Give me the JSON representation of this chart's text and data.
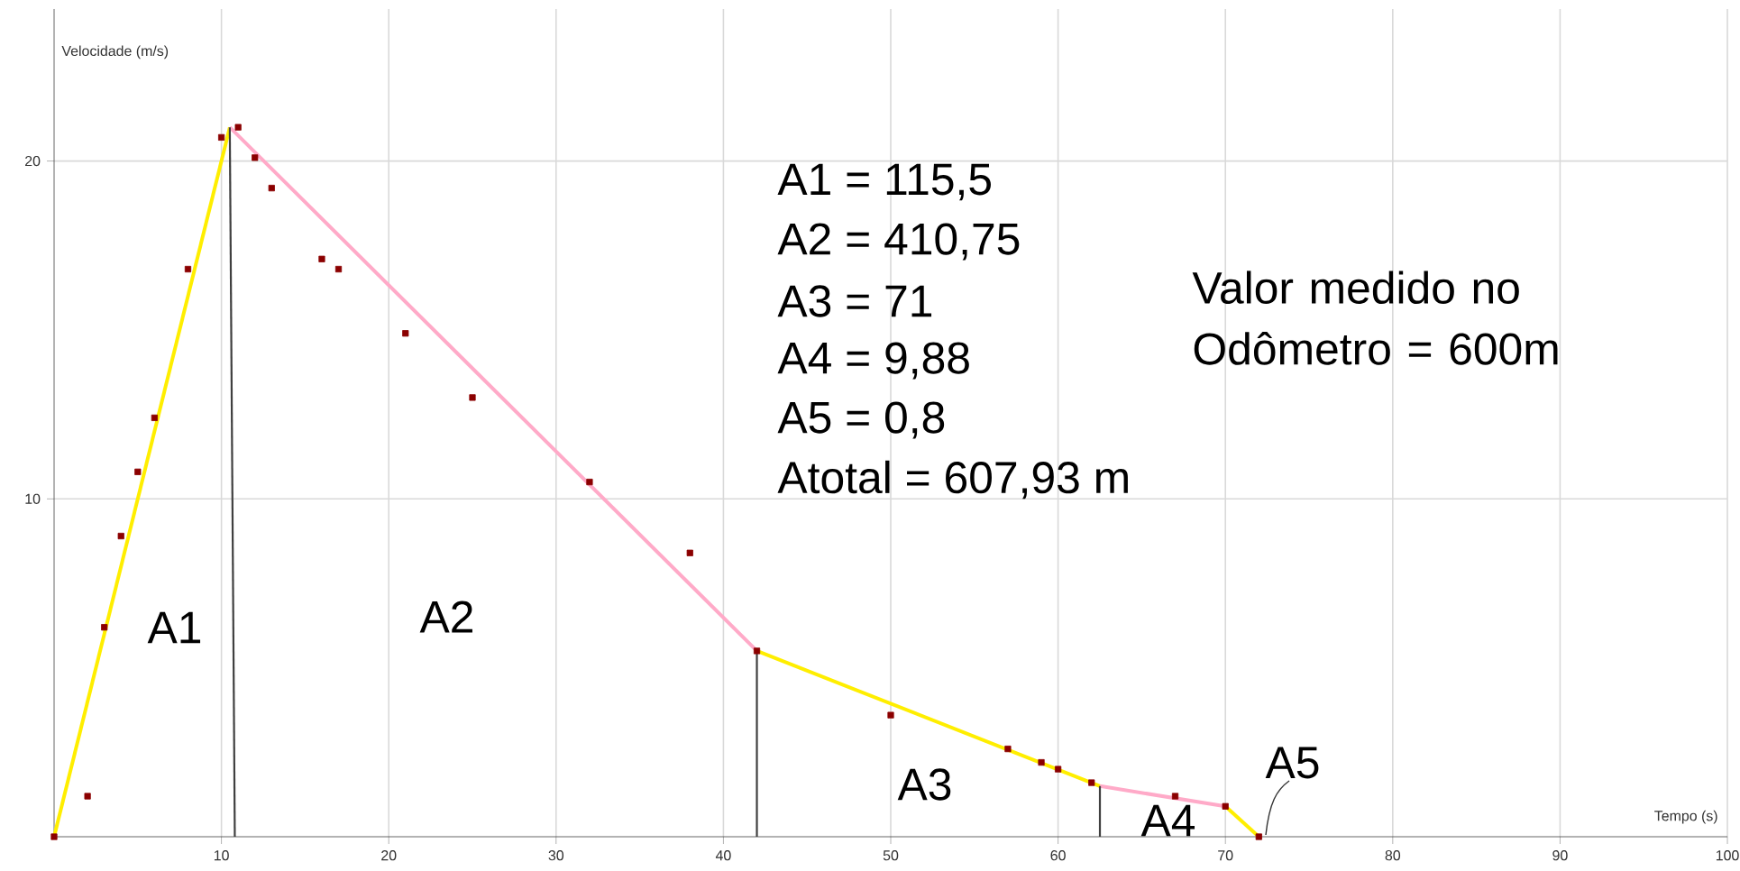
{
  "chart_data": {
    "type": "scatter",
    "xlabel": "Tempo (s)",
    "ylabel": "Velocidade (m/s)",
    "xlim": [
      0,
      100
    ],
    "ylim": [
      0,
      24.5
    ],
    "xticks": [
      10,
      20,
      30,
      40,
      50,
      60,
      70,
      80,
      90,
      100
    ],
    "yticks": [
      10,
      20
    ],
    "grid": true,
    "series": [
      {
        "color": "#8b0000",
        "marker": "square",
        "x": [
          0,
          2,
          3,
          4,
          5,
          6,
          8,
          10,
          11,
          12,
          13,
          16,
          17,
          21,
          25,
          32,
          38,
          42,
          50,
          57,
          59,
          60,
          62,
          67,
          70,
          72
        ],
        "values": [
          0,
          1.2,
          6.2,
          8.9,
          10.8,
          12.4,
          16.8,
          20.7,
          21,
          20.1,
          19.2,
          17.1,
          16.8,
          14.9,
          13,
          10.5,
          8.4,
          5.5,
          3.6,
          2.6,
          2.2,
          2,
          1.6,
          1.2,
          0.9,
          0
        ]
      },
      {
        "type": "line",
        "color": "#ffee00",
        "x": [
          0,
          10.5
        ],
        "values": [
          0,
          21
        ]
      },
      {
        "type": "line",
        "color": "#ffaac8",
        "x": [
          10.5,
          42
        ],
        "values": [
          21,
          5.5
        ]
      },
      {
        "type": "line",
        "color": "#ffee00",
        "x": [
          42,
          62.5
        ],
        "values": [
          5.5,
          1.5
        ]
      },
      {
        "type": "line",
        "color": "#ffaac8",
        "x": [
          62.5,
          70
        ],
        "values": [
          1.5,
          0.9
        ]
      },
      {
        "type": "line",
        "color": "#ffee00",
        "x": [
          70,
          72
        ],
        "values": [
          0.9,
          0
        ]
      },
      {
        "type": "line",
        "color": "#404040",
        "x": [
          10.5,
          10.8
        ],
        "values": [
          21,
          0
        ]
      },
      {
        "type": "line",
        "color": "#404040",
        "x": [
          42,
          42
        ],
        "values": [
          5.5,
          0
        ]
      },
      {
        "type": "line",
        "color": "#404040",
        "x": [
          62.5,
          62.5
        ],
        "values": [
          1.5,
          0
        ]
      }
    ],
    "annotations": [
      "A1",
      "A2",
      "A3",
      "A4",
      "A5",
      "A1 = 115,5",
      "A2 = 410,75",
      "A3 = 71",
      "A4 = 9,88",
      "A5 = 0,8",
      "Atotal = 607,93 m",
      "Valor medido no Odômetro = 600m"
    ]
  }
}
